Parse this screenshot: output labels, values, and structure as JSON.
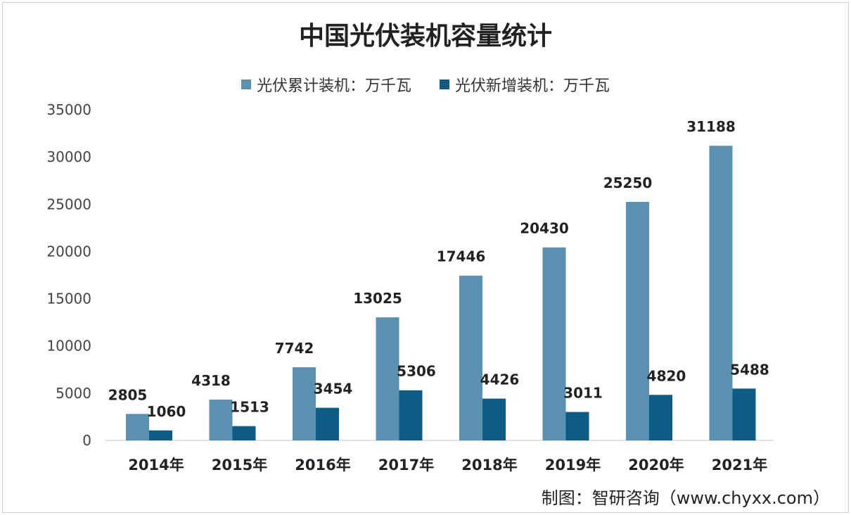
{
  "chart_data": {
    "type": "bar",
    "title": "中国光伏装机容量统计",
    "categories": [
      "2014年",
      "2015年",
      "2016年",
      "2017年",
      "2018年",
      "2019年",
      "2020年",
      "2021年"
    ],
    "series": [
      {
        "name": "光伏累计装机：万千瓦",
        "color": "#5a91b0",
        "values": [
          2805,
          4318,
          7742,
          13025,
          17446,
          20430,
          25250,
          31188
        ]
      },
      {
        "name": "光伏新增装机：万千瓦",
        "color": "#0d5c85",
        "values": [
          1060,
          1513,
          3454,
          5306,
          4426,
          3011,
          4820,
          5488
        ]
      }
    ],
    "ylim": [
      0,
      35000
    ],
    "yticks": [
      0,
      5000,
      10000,
      15000,
      20000,
      25000,
      30000,
      35000
    ],
    "grid": false,
    "legend": "top",
    "xlabel": "",
    "ylabel": ""
  },
  "source": "制图：智研咨询（www.chyxx.com）"
}
